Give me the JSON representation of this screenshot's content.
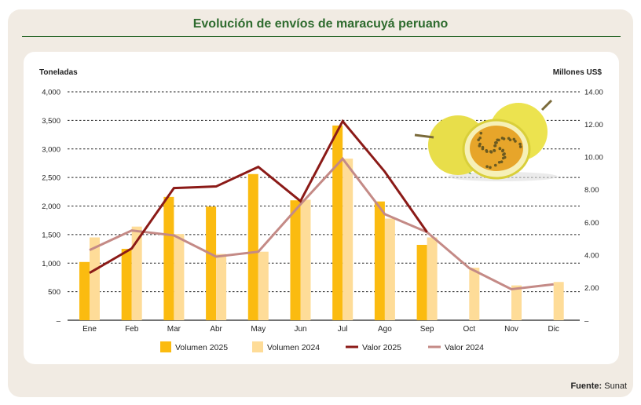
{
  "title": "Evolución de envíos de maracuyá peruano",
  "source_label": "Fuente:",
  "source": "Sunat",
  "chart_data": {
    "type": "bar+line",
    "categories": [
      "Ene",
      "Feb",
      "Mar",
      "Abr",
      "May",
      "Jun",
      "Jul",
      "Ago",
      "Sep",
      "Oct",
      "Nov",
      "Dic"
    ],
    "ylabel": "Toneladas",
    "ylabel_right": "Millones US$",
    "ylim": [
      0,
      4000
    ],
    "ylim_right": [
      0,
      14
    ],
    "yticks": [
      "–",
      "500",
      "1,000",
      "1,500",
      "2,000",
      "2,500",
      "3,000",
      "3,500",
      "4,000"
    ],
    "yticks_right": [
      "–",
      "2.00",
      "4.00",
      "6.00",
      "8.00",
      "10.00",
      "12.00",
      "14.00"
    ],
    "grid": true,
    "legend": "bottom",
    "series": [
      {
        "name": "Volumen 2025",
        "type": "bar",
        "color": "#fbbb10",
        "values": [
          1020,
          1250,
          2160,
          1990,
          2560,
          2100,
          3410,
          2080,
          1320,
          null,
          null,
          null
        ]
      },
      {
        "name": "Volumen 2024",
        "type": "bar",
        "color": "#fedc98",
        "values": [
          1450,
          1640,
          1510,
          1160,
          1200,
          2110,
          2830,
          1780,
          1450,
          920,
          610,
          670
        ]
      },
      {
        "name": "Valor 2025",
        "type": "line",
        "axis": "right",
        "color": "#8b1a17",
        "values": [
          2.9,
          4.4,
          8.1,
          8.2,
          9.4,
          7.3,
          12.2,
          9.1,
          5.4,
          null,
          null,
          null
        ]
      },
      {
        "name": "Valor 2024",
        "type": "line",
        "axis": "right",
        "color": "#c48a86",
        "values": [
          4.3,
          5.5,
          5.2,
          3.9,
          4.2,
          7.1,
          9.9,
          6.5,
          5.4,
          3.2,
          1.9,
          2.2
        ]
      }
    ]
  }
}
